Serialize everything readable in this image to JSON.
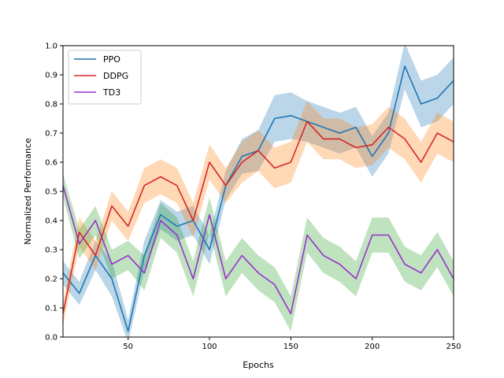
{
  "chart_data": {
    "type": "line",
    "title": "",
    "xlabel": "Epochs",
    "ylabel": "Normalized Performance",
    "xlim": [
      10,
      250
    ],
    "ylim": [
      0.0,
      1.0
    ],
    "xticks": [
      50,
      100,
      150,
      200,
      250
    ],
    "yticks": [
      0.0,
      0.1,
      0.2,
      0.3,
      0.4,
      0.5,
      0.6,
      0.7,
      0.8,
      0.9,
      1.0
    ],
    "xtick_labels": [
      "50",
      "100",
      "150",
      "200",
      "250"
    ],
    "ytick_labels": [
      "0.0",
      "0.1",
      "0.2",
      "0.3",
      "0.4",
      "0.5",
      "0.6",
      "0.7",
      "0.8",
      "0.9",
      "1.0"
    ],
    "grid": false,
    "legend_position": "top-left",
    "x": [
      10,
      20,
      30,
      40,
      50,
      60,
      70,
      80,
      90,
      100,
      110,
      120,
      130,
      140,
      150,
      160,
      170,
      180,
      190,
      200,
      210,
      220,
      230,
      240,
      250
    ],
    "series": [
      {
        "name": "PPO",
        "color": "#1f77b4",
        "band_color": "#1f77b4",
        "values": [
          0.22,
          0.15,
          0.28,
          0.2,
          0.02,
          0.28,
          0.42,
          0.38,
          0.4,
          0.3,
          0.52,
          0.62,
          0.64,
          0.75,
          0.76,
          0.74,
          0.72,
          0.7,
          0.72,
          0.62,
          0.7,
          0.93,
          0.8,
          0.82,
          0.88
        ],
        "band": [
          0.04,
          0.04,
          0.05,
          0.06,
          0.04,
          0.05,
          0.05,
          0.05,
          0.05,
          0.05,
          0.05,
          0.06,
          0.07,
          0.08,
          0.08,
          0.07,
          0.07,
          0.07,
          0.07,
          0.07,
          0.07,
          0.08,
          0.08,
          0.08,
          0.08
        ]
      },
      {
        "name": "DDPG",
        "color": "#d62728",
        "band_color": "#ff7f0e",
        "values": [
          0.08,
          0.36,
          0.28,
          0.45,
          0.38,
          0.52,
          0.55,
          0.52,
          0.4,
          0.6,
          0.52,
          0.6,
          0.64,
          0.58,
          0.6,
          0.74,
          0.68,
          0.68,
          0.65,
          0.66,
          0.72,
          0.68,
          0.6,
          0.7,
          0.67
        ],
        "band": [
          0.04,
          0.05,
          0.05,
          0.05,
          0.05,
          0.06,
          0.06,
          0.06,
          0.06,
          0.06,
          0.06,
          0.07,
          0.07,
          0.07,
          0.07,
          0.07,
          0.07,
          0.07,
          0.07,
          0.07,
          0.07,
          0.07,
          0.07,
          0.07,
          0.07
        ]
      },
      {
        "name": "TD3",
        "color": "#9932cc",
        "band_color": "#2ca02c",
        "values": [
          0.52,
          0.32,
          0.4,
          0.25,
          0.28,
          0.22,
          0.4,
          0.35,
          0.2,
          0.42,
          0.2,
          0.28,
          0.22,
          0.18,
          0.08,
          0.35,
          0.28,
          0.25,
          0.2,
          0.35,
          0.35,
          0.25,
          0.22,
          0.3,
          0.2
        ],
        "band": [
          0.04,
          0.05,
          0.05,
          0.05,
          0.05,
          0.06,
          0.06,
          0.06,
          0.06,
          0.06,
          0.06,
          0.06,
          0.06,
          0.06,
          0.06,
          0.06,
          0.06,
          0.06,
          0.06,
          0.06,
          0.06,
          0.06,
          0.06,
          0.06,
          0.06
        ]
      }
    ]
  }
}
